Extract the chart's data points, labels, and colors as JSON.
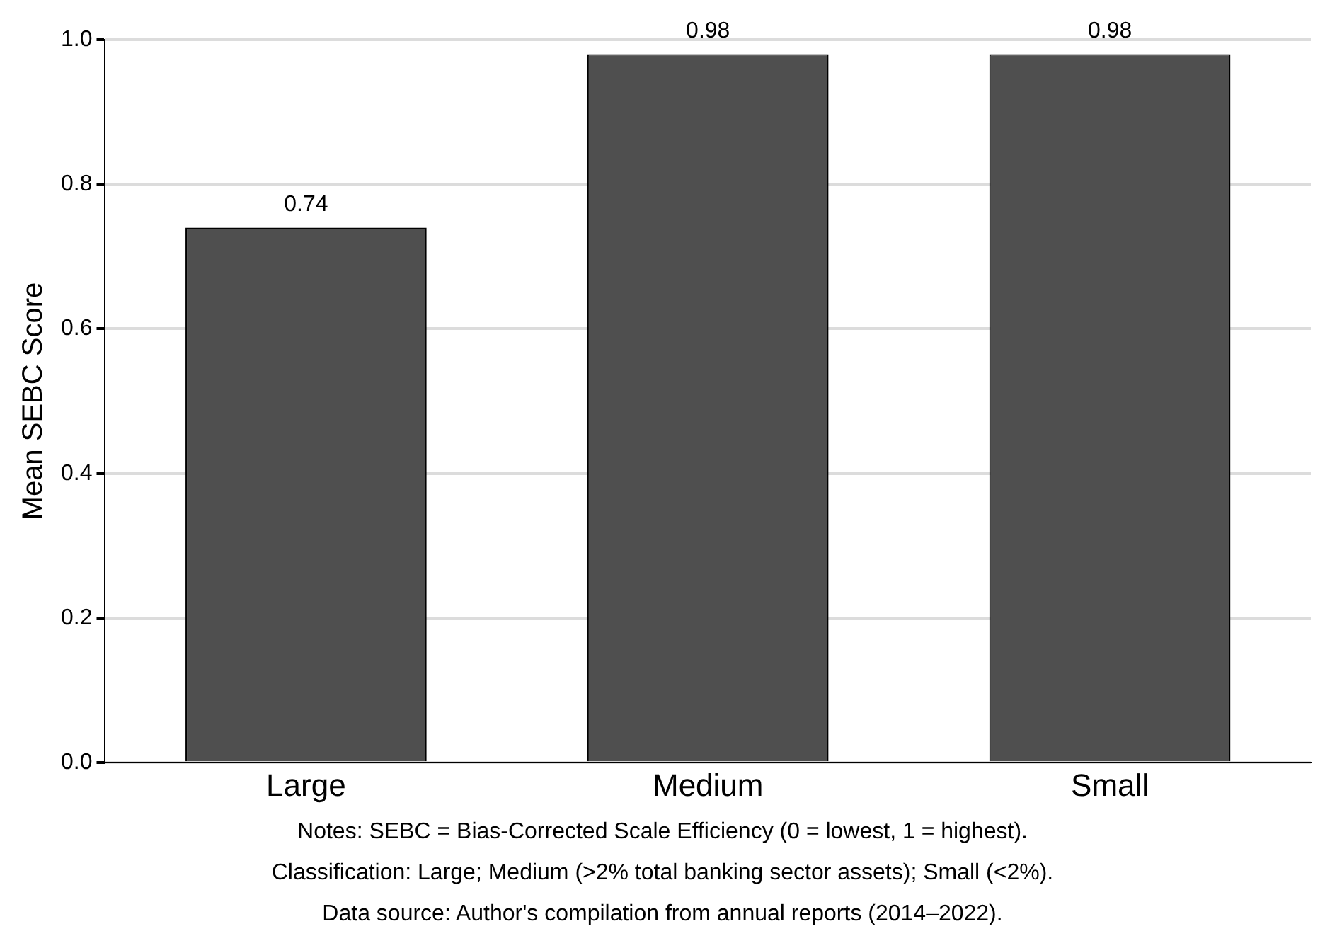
{
  "chart_data": {
    "type": "bar",
    "ylabel": "Mean SEBC Score",
    "categories": [
      "Large",
      "Medium",
      "Small"
    ],
    "values": [
      0.74,
      0.98,
      0.98
    ],
    "color": "#4f4f4f",
    "ylim": [
      0,
      1.0
    ],
    "yticks": [
      {
        "value": 0,
        "label": "0.0"
      },
      {
        "value": 0.2,
        "label": "0.2"
      },
      {
        "value": 0.4,
        "label": "0.4"
      },
      {
        "value": 0.6,
        "label": "0.6"
      },
      {
        "value": 0.8,
        "label": "0.8"
      },
      {
        "value": 1.0,
        "label": "1.0"
      }
    ],
    "grid": "y",
    "legend": false,
    "data_labels": true,
    "annotations": [
      "Notes: SEBC = Bias-Corrected Scale Efficiency (0 = lowest, 1 = highest).",
      "Classification: Large; Medium (>2% total banking sector assets); Small (<2%).",
      "Data source: Author's compilation from annual reports (2014–2022)."
    ]
  }
}
